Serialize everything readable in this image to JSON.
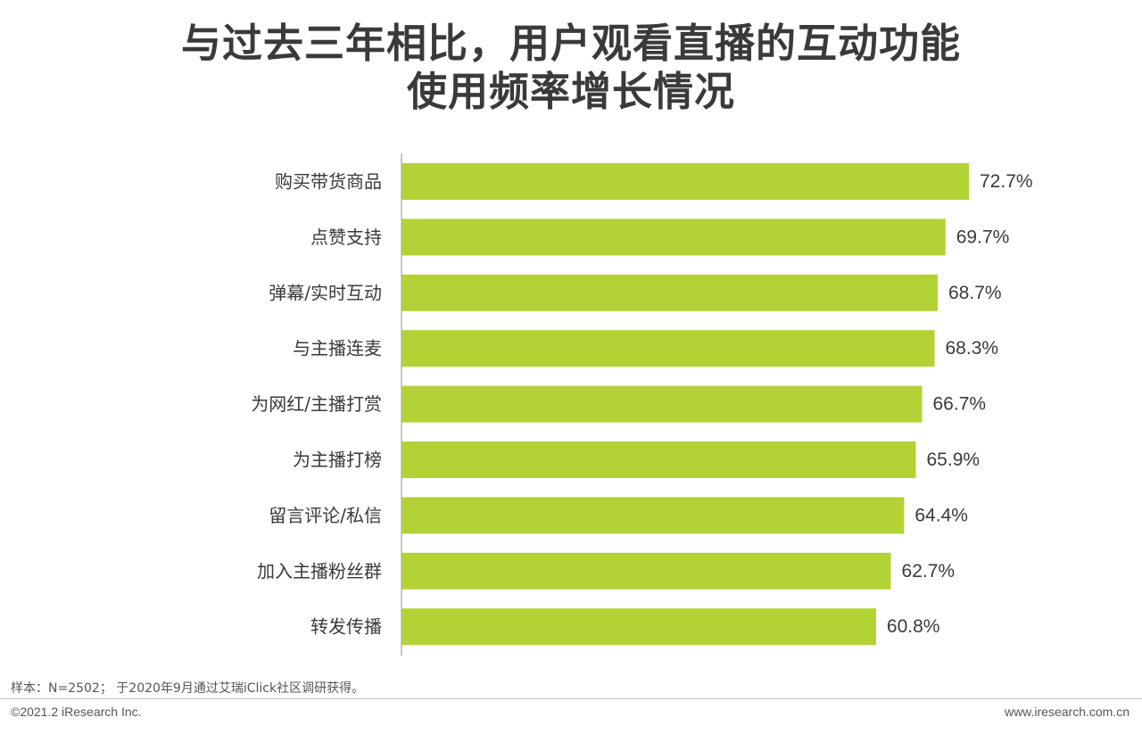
{
  "title": {
    "line1": "与过去三年相比，用户观看直播的互动功能",
    "line2": "使用频率增长情况"
  },
  "chart_data": {
    "type": "bar",
    "orientation": "horizontal",
    "title": "与过去三年相比，用户观看直播的互动功能使用频率增长情况",
    "categories": [
      "购买带货商品",
      "点赞支持",
      "弹幕/实时互动",
      "与主播连麦",
      "为网红/主播打赏",
      "为主播打榜",
      "留言评论/私信",
      "加入主播粉丝群",
      "转发传播"
    ],
    "values": [
      72.7,
      69.7,
      68.7,
      68.3,
      66.7,
      65.9,
      64.4,
      62.7,
      60.8
    ],
    "value_labels": [
      "72.7%",
      "69.7%",
      "68.7%",
      "68.3%",
      "66.7%",
      "65.9%",
      "64.4%",
      "62.7%",
      "60.8%"
    ],
    "unit": "%",
    "xlim": [
      50,
      74
    ],
    "xlabel": "",
    "ylabel": "",
    "grid": false,
    "bar_color": "#b2d235"
  },
  "footer": {
    "note": "样本：N=2502； 于2020年9月通过艾瑞iClick社区调研获得。",
    "copyright": "©2021.2 iResearch Inc.",
    "website": "www.iresearch.com.cn"
  }
}
